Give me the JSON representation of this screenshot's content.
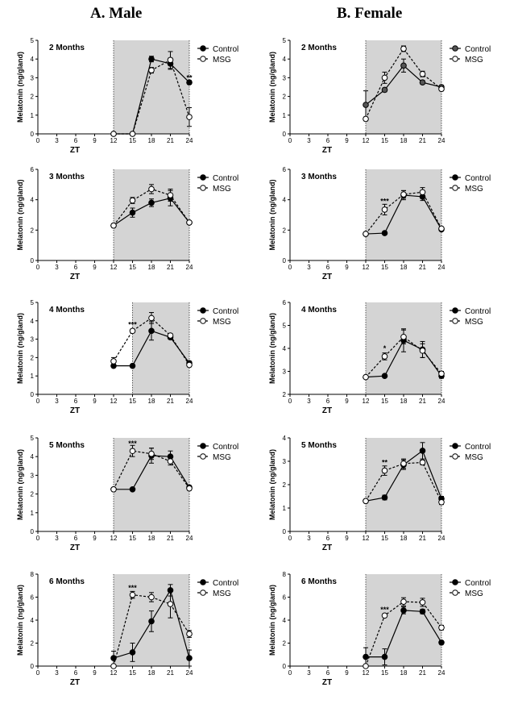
{
  "columns": [
    {
      "title": "A. Male"
    },
    {
      "title": "B. Female"
    }
  ],
  "chart_data": [
    {
      "type": "line",
      "sex": "Male",
      "title": "2 Months",
      "xlabel": "ZT",
      "ylabel": "Melatonin (ng/gland)",
      "xlim": [
        0,
        24
      ],
      "xticks": [
        0,
        3,
        6,
        9,
        12,
        15,
        18,
        21,
        24
      ],
      "ylim": [
        0,
        5
      ],
      "yticks": [
        0,
        1,
        2,
        3,
        4,
        5
      ],
      "dark_phase": [
        12,
        24
      ],
      "legend": "top-right",
      "x": [
        12,
        15,
        18,
        21,
        24
      ],
      "series": [
        {
          "name": "Control",
          "style": "solid-filled",
          "values": [
            0,
            0,
            4.0,
            3.75,
            2.75
          ],
          "errors": [
            0,
            0,
            0.15,
            0.3,
            0.1
          ]
        },
        {
          "name": "MSG",
          "style": "dashed-open",
          "values": [
            0,
            0,
            3.4,
            3.95,
            0.9
          ],
          "errors": [
            0,
            0,
            0.15,
            0.45,
            0.5
          ]
        }
      ],
      "annotations": [
        {
          "x": 24,
          "y": 3.0,
          "text": "**"
        }
      ]
    },
    {
      "type": "line",
      "sex": "Female",
      "title": "2 Months",
      "xlabel": "ZT",
      "ylabel": "Melatonin (ng/gland)",
      "xlim": [
        0,
        24
      ],
      "xticks": [
        0,
        3,
        6,
        9,
        12,
        15,
        18,
        21,
        24
      ],
      "ylim": [
        0,
        5
      ],
      "yticks": [
        0,
        1,
        2,
        3,
        4,
        5
      ],
      "dark_phase": [
        12,
        24
      ],
      "legend": "top-right",
      "x": [
        12,
        15,
        18,
        21,
        24
      ],
      "series": [
        {
          "name": "Control",
          "style": "solid-filled-gray",
          "values": [
            1.55,
            2.35,
            3.65,
            2.75,
            2.5
          ],
          "errors": [
            0.75,
            0.1,
            0.35,
            0.1,
            0.1
          ]
        },
        {
          "name": "MSG",
          "style": "dashed-open",
          "values": [
            0.8,
            3.0,
            4.55,
            3.2,
            2.4
          ],
          "errors": [
            0.1,
            0.3,
            0.15,
            0.15,
            0.1
          ]
        }
      ],
      "annotations": []
    },
    {
      "type": "line",
      "sex": "Male",
      "title": "3 Months",
      "xlabel": "ZT",
      "ylabel": "Melatonin (ng/gland)",
      "xlim": [
        0,
        24
      ],
      "xticks": [
        0,
        3,
        6,
        9,
        12,
        15,
        18,
        21,
        24
      ],
      "ylim": [
        0,
        6
      ],
      "yticks": [
        0,
        2,
        4,
        6
      ],
      "dark_phase": [
        12,
        24
      ],
      "legend": "top-right",
      "x": [
        12,
        15,
        18,
        21,
        24
      ],
      "series": [
        {
          "name": "Control",
          "style": "solid-filled",
          "values": [
            2.3,
            3.15,
            3.8,
            4.1,
            2.5
          ],
          "errors": [
            0.1,
            0.3,
            0.25,
            0.5,
            0.1
          ]
        },
        {
          "name": "MSG",
          "style": "dashed-open",
          "values": [
            2.3,
            3.95,
            4.7,
            4.3,
            2.5
          ],
          "errors": [
            0.1,
            0.2,
            0.3,
            0.4,
            0.1
          ]
        }
      ],
      "annotations": []
    },
    {
      "type": "line",
      "sex": "Female",
      "title": "3 Months",
      "xlabel": "ZT",
      "ylabel": "Melatonin (ng/gland)",
      "xlim": [
        0,
        24
      ],
      "xticks": [
        0,
        3,
        6,
        9,
        12,
        15,
        18,
        21,
        24
      ],
      "ylim": [
        0,
        6
      ],
      "yticks": [
        0,
        2,
        4,
        6
      ],
      "dark_phase": [
        12,
        24
      ],
      "legend": "top-right",
      "x": [
        12,
        15,
        18,
        21,
        24
      ],
      "series": [
        {
          "name": "Control",
          "style": "solid-filled",
          "values": [
            1.75,
            1.8,
            4.3,
            4.2,
            2.05
          ],
          "errors": [
            0.1,
            0.1,
            0.3,
            0.25,
            0.1
          ]
        },
        {
          "name": "MSG",
          "style": "dashed-open",
          "values": [
            1.75,
            3.35,
            4.35,
            4.5,
            2.1
          ],
          "errors": [
            0.1,
            0.35,
            0.25,
            0.3,
            0.1
          ]
        }
      ],
      "annotations": [
        {
          "x": 15,
          "y": 3.9,
          "text": "***"
        }
      ]
    },
    {
      "type": "line",
      "sex": "Male",
      "title": "4 Months",
      "xlabel": "ZT",
      "ylabel": "Melatonin (ng/gland)",
      "xlim": [
        0,
        24
      ],
      "xticks": [
        0,
        3,
        6,
        9,
        12,
        15,
        18,
        21,
        24
      ],
      "ylim": [
        0,
        5
      ],
      "yticks": [
        0,
        1,
        2,
        3,
        4,
        5
      ],
      "dark_phase": [
        15,
        24
      ],
      "legend": "top-right",
      "x": [
        12,
        15,
        18,
        21,
        24
      ],
      "series": [
        {
          "name": "Control",
          "style": "solid-filled",
          "values": [
            1.55,
            1.55,
            3.45,
            3.1,
            1.7
          ],
          "errors": [
            0.05,
            0.05,
            0.5,
            0.1,
            0.1
          ]
        },
        {
          "name": "MSG",
          "style": "dashed-open",
          "values": [
            1.8,
            3.45,
            4.15,
            3.2,
            1.6
          ],
          "errors": [
            0.2,
            0.1,
            0.3,
            0.1,
            0.1
          ]
        }
      ],
      "annotations": [
        {
          "x": 15,
          "y": 3.8,
          "text": "***"
        }
      ]
    },
    {
      "type": "line",
      "sex": "Female",
      "title": "4 Months",
      "xlabel": "ZT",
      "ylabel": "Melatonin (ng/gland)",
      "xlim": [
        0,
        24
      ],
      "xticks": [
        0,
        3,
        6,
        9,
        12,
        15,
        18,
        21,
        24
      ],
      "ylim": [
        2,
        6
      ],
      "yticks": [
        2,
        3,
        4,
        5,
        6
      ],
      "dark_phase": [
        12,
        24
      ],
      "legend": "top-right",
      "x": [
        12,
        15,
        18,
        21,
        24
      ],
      "series": [
        {
          "name": "Control",
          "style": "solid-filled",
          "values": [
            2.75,
            2.8,
            4.35,
            3.95,
            2.8
          ],
          "errors": [
            0.05,
            0.05,
            0.5,
            0.35,
            0.1
          ]
        },
        {
          "name": "MSG",
          "style": "dashed-open",
          "values": [
            2.75,
            3.65,
            4.5,
            3.9,
            2.9
          ],
          "errors": [
            0.05,
            0.15,
            0.3,
            0.3,
            0.1
          ]
        }
      ],
      "annotations": [
        {
          "x": 15,
          "y": 4.0,
          "text": "*"
        }
      ]
    },
    {
      "type": "line",
      "sex": "Male",
      "title": "5 Months",
      "xlabel": "ZT",
      "ylabel": "Melatonin (ng/gland)",
      "xlim": [
        0,
        24
      ],
      "xticks": [
        0,
        3,
        6,
        9,
        12,
        15,
        18,
        21,
        24
      ],
      "ylim": [
        0,
        5
      ],
      "yticks": [
        0,
        1,
        2,
        3,
        4,
        5
      ],
      "dark_phase": [
        12,
        24
      ],
      "legend": "top-right",
      "x": [
        12,
        15,
        18,
        21,
        24
      ],
      "series": [
        {
          "name": "Control",
          "style": "solid-filled",
          "values": [
            2.25,
            2.25,
            4.05,
            4.0,
            2.35
          ],
          "errors": [
            0.05,
            0.05,
            0.4,
            0.3,
            0.1
          ]
        },
        {
          "name": "MSG",
          "style": "dashed-open",
          "values": [
            2.25,
            4.3,
            4.15,
            3.75,
            2.3
          ],
          "errors": [
            0.05,
            0.3,
            0.3,
            0.2,
            0.1
          ]
        }
      ],
      "annotations": [
        {
          "x": 15,
          "y": 4.7,
          "text": "***"
        }
      ]
    },
    {
      "type": "line",
      "sex": "Female",
      "title": "5 Months",
      "xlabel": "ZT",
      "ylabel": "Melatonin (ng/gland)",
      "xlim": [
        0,
        24
      ],
      "xticks": [
        0,
        3,
        6,
        9,
        12,
        15,
        18,
        21,
        24
      ],
      "ylim": [
        0,
        4
      ],
      "yticks": [
        0,
        1,
        2,
        3,
        4
      ],
      "dark_phase": [
        12,
        24
      ],
      "legend": "top-right",
      "x": [
        12,
        15,
        18,
        21,
        24
      ],
      "series": [
        {
          "name": "Control",
          "style": "solid-filled",
          "values": [
            1.3,
            1.45,
            2.85,
            3.45,
            1.4
          ],
          "errors": [
            0.05,
            0.1,
            0.2,
            0.35,
            0.1
          ]
        },
        {
          "name": "MSG",
          "style": "dashed-open",
          "values": [
            1.3,
            2.6,
            2.9,
            2.95,
            1.25
          ],
          "errors": [
            0.05,
            0.2,
            0.2,
            0.1,
            0.1
          ]
        }
      ],
      "annotations": [
        {
          "x": 15,
          "y": 2.95,
          "text": "**"
        }
      ]
    },
    {
      "type": "line",
      "sex": "Male",
      "title": "6 Months",
      "xlabel": "ZT",
      "ylabel": "Melatonin (ng/gland)",
      "xlim": [
        0,
        24
      ],
      "xticks": [
        0,
        3,
        6,
        9,
        12,
        15,
        18,
        21,
        24
      ],
      "ylim": [
        0,
        8
      ],
      "yticks": [
        0,
        2,
        4,
        6,
        8
      ],
      "dark_phase": [
        12,
        24
      ],
      "legend": "top-right",
      "x": [
        12,
        15,
        18,
        21,
        24
      ],
      "series": [
        {
          "name": "Control",
          "style": "solid-filled",
          "values": [
            0.7,
            1.2,
            3.9,
            6.6,
            0.7
          ],
          "errors": [
            0.6,
            0.8,
            0.9,
            0.5,
            0.7
          ]
        },
        {
          "name": "MSG",
          "style": "dashed-open",
          "values": [
            0,
            6.2,
            6.0,
            5.4,
            2.8
          ],
          "errors": [
            0,
            0.3,
            0.4,
            1.2,
            0.3
          ]
        }
      ],
      "annotations": [
        {
          "x": 15,
          "y": 6.8,
          "text": "***"
        }
      ]
    },
    {
      "type": "line",
      "sex": "Female",
      "title": "6 Months",
      "xlabel": "ZT",
      "ylabel": "Melatonin (ng/gland)",
      "xlim": [
        0,
        24
      ],
      "xticks": [
        0,
        3,
        6,
        9,
        12,
        15,
        18,
        21,
        24
      ],
      "ylim": [
        0,
        8
      ],
      "yticks": [
        0,
        2,
        4,
        6,
        8
      ],
      "dark_phase": [
        12,
        24
      ],
      "legend": "top-right",
      "x": [
        12,
        15,
        18,
        21,
        24
      ],
      "series": [
        {
          "name": "Control",
          "style": "solid-filled",
          "values": [
            0.8,
            0.8,
            4.85,
            4.75,
            2.05
          ],
          "errors": [
            0.8,
            0.7,
            0.3,
            0.2,
            0.15
          ]
        },
        {
          "name": "MSG",
          "style": "dashed-open",
          "values": [
            0,
            4.4,
            5.6,
            5.55,
            3.35
          ],
          "errors": [
            0,
            0.15,
            0.35,
            0.35,
            0.2
          ]
        }
      ],
      "annotations": [
        {
          "x": 15,
          "y": 4.9,
          "text": "***"
        }
      ]
    }
  ]
}
